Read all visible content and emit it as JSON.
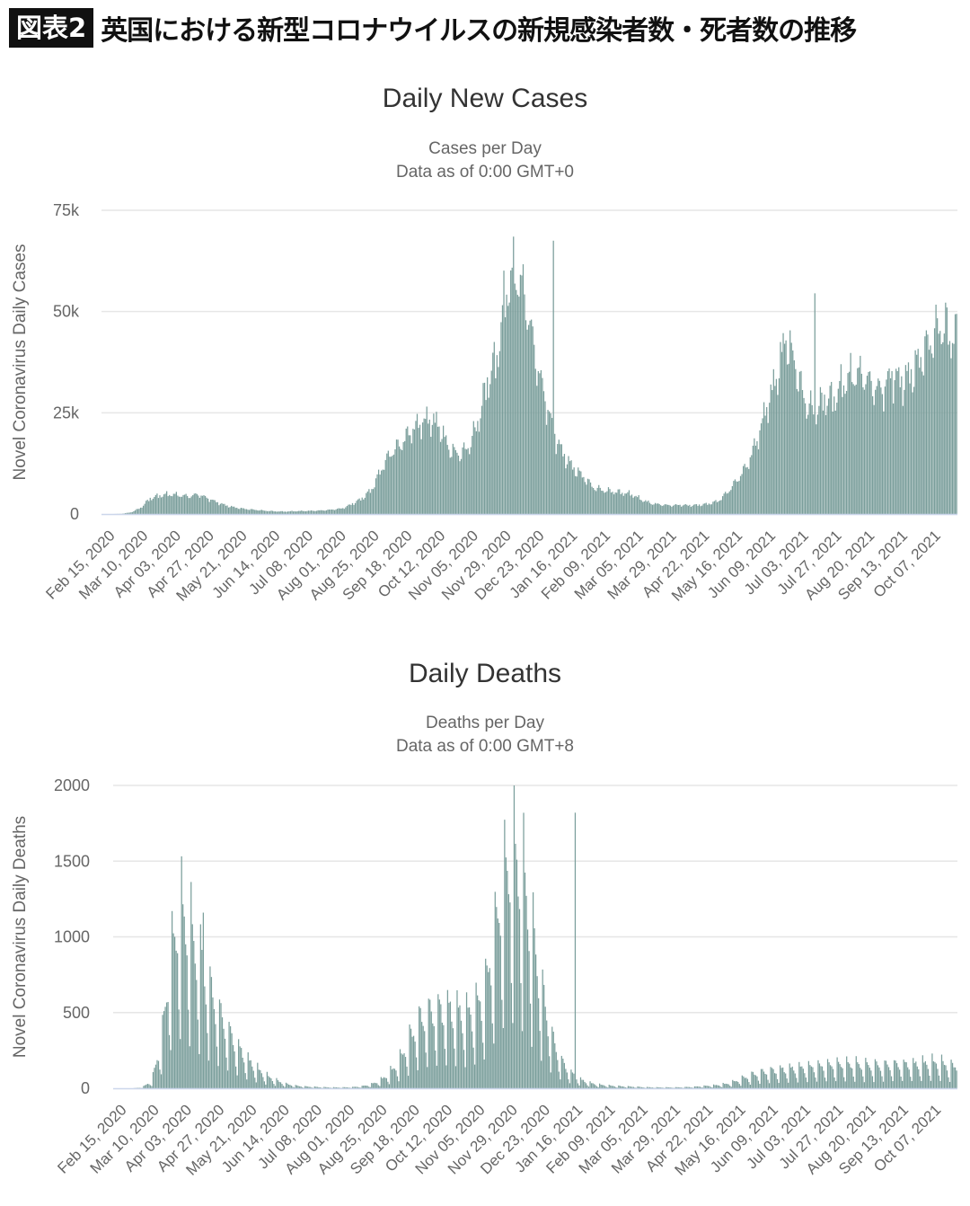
{
  "header": {
    "badge": "図表2",
    "title": "英国における新型コロナウイルスの新規感染者数・死者数の推移"
  },
  "colors": {
    "bar": "#7a9e9b",
    "bar_stroke": "#6a8e8b",
    "grid": "#e6e6e6",
    "axis": "#ccd6eb",
    "text": "#666666"
  },
  "chart_data": [
    {
      "type": "bar",
      "title": "Daily New Cases",
      "subtitle": "Cases per Day",
      "subtitle2": "Data as of 0:00 GMT+0",
      "xlabel": "",
      "ylabel": "Novel Coronavirus Daily Cases",
      "ylim": [
        0,
        75000
      ],
      "yticks": [
        0,
        25000,
        50000,
        75000
      ],
      "ytick_labels": [
        "0",
        "25k",
        "50k",
        "75k"
      ],
      "grid": true,
      "x_start": "Feb 15, 2020",
      "x_end": "Oct 28, 2021",
      "xtick_labels": [
        "Feb 15, 2020",
        "Mar 10, 2020",
        "Apr 03, 2020",
        "Apr 27, 2020",
        "May 21, 2020",
        "Jun 14, 2020",
        "Jul 08, 2020",
        "Aug 01, 2020",
        "Aug 25, 2020",
        "Sep 18, 2020",
        "Oct 12, 2020",
        "Nov 05, 2020",
        "Nov 29, 2020",
        "Dec 23, 2020",
        "Jan 16, 2021",
        "Feb 09, 2021",
        "Mar 05, 2021",
        "Mar 29, 2021",
        "Apr 22, 2021",
        "May 16, 2021",
        "Jun 09, 2021",
        "Jul 03, 2021",
        "Jul 27, 2021",
        "Aug 20, 2021",
        "Sep 13, 2021",
        "Oct 07, 2021"
      ],
      "weekly_values": [
        0,
        0,
        50,
        400,
        1500,
        3800,
        4500,
        4800,
        4600,
        4300,
        4800,
        3800,
        2800,
        2000,
        1500,
        1200,
        1000,
        800,
        650,
        600,
        700,
        750,
        800,
        900,
        1100,
        1400,
        2500,
        3800,
        6000,
        11000,
        15000,
        17000,
        20000,
        22000,
        23000,
        21500,
        16000,
        14500,
        16000,
        22000,
        32000,
        38000,
        55000,
        59000,
        52000,
        38000,
        28000,
        19000,
        14000,
        11000,
        9000,
        6500,
        5800,
        5500,
        5200,
        4800,
        3500,
        2600,
        2300,
        2100,
        2200,
        2100,
        2200,
        2500,
        3200,
        5500,
        8500,
        12000,
        18000,
        26000,
        33000,
        43000,
        36000,
        27000,
        25000,
        28000,
        28000,
        32000,
        34000,
        34000,
        31000,
        30000,
        34000,
        32000,
        34000,
        38000,
        42000,
        46000,
        43000
      ],
      "weekday_factors": [
        1.0,
        0.88,
        0.95,
        1.06,
        1.1,
        1.12,
        0.98
      ],
      "peaks": [
        {
          "date": "Jan 08, 2021",
          "value": 67500
        },
        {
          "date": "Jul 17, 2021",
          "value": 54500
        },
        {
          "date": "Oct 21, 2021",
          "value": 51000
        }
      ]
    },
    {
      "type": "bar",
      "title": "Daily Deaths",
      "subtitle": "Deaths per Day",
      "subtitle2": "Data as of 0:00 GMT+8",
      "xlabel": "",
      "ylabel": "Novel Coronavirus Daily Deaths",
      "ylim": [
        0,
        2000
      ],
      "yticks": [
        0,
        500,
        1000,
        1500,
        2000
      ],
      "ytick_labels": [
        "0",
        "500",
        "1000",
        "1500",
        "2000"
      ],
      "grid": true,
      "x_start": "Feb 15, 2020",
      "x_end": "Oct 28, 2021",
      "xtick_labels": [
        "Feb 15, 2020",
        "Mar 10, 2020",
        "Apr 03, 2020",
        "Apr 27, 2020",
        "May 21, 2020",
        "Jun 14, 2020",
        "Jul 08, 2020",
        "Aug 01, 2020",
        "Aug 25, 2020",
        "Sep 18, 2020",
        "Oct 12, 2020",
        "Nov 05, 2020",
        "Nov 29, 2020",
        "Dec 23, 2020",
        "Jan 16, 2021",
        "Feb 09, 2021",
        "Mar 05, 2021",
        "Mar 29, 2021",
        "Apr 22, 2021",
        "May 16, 2021",
        "Jun 09, 2021",
        "Jul 03, 2021",
        "Jul 27, 2021",
        "Aug 20, 2021",
        "Sep 13, 2021",
        "Oct 07, 2021"
      ],
      "weekly_values": [
        0,
        0,
        0,
        5,
        40,
        250,
        700,
        950,
        850,
        700,
        550,
        420,
        320,
        230,
        160,
        110,
        70,
        45,
        25,
        15,
        10,
        8,
        6,
        5,
        5,
        6,
        10,
        20,
        40,
        80,
        140,
        250,
        350,
        400,
        420,
        430,
        420,
        400,
        440,
        520,
        800,
        1100,
        1250,
        1150,
        850,
        550,
        300,
        160,
        90,
        50,
        30,
        20,
        15,
        12,
        10,
        8,
        6,
        5,
        5,
        5,
        6,
        8,
        12,
        15,
        20,
        30,
        50,
        70,
        85,
        95,
        100,
        105,
        110,
        115,
        120,
        125,
        130,
        130,
        130,
        125,
        125,
        125,
        130,
        130,
        130,
        135,
        140,
        140,
        120
      ],
      "weekday_factors": [
        0.35,
        1.55,
        1.35,
        1.25,
        1.1,
        0.95,
        0.6
      ],
      "peaks": [
        {
          "date": "Apr 21, 2020",
          "value": 1160
        },
        {
          "date": "Jan 20, 2021",
          "value": 1820
        }
      ]
    }
  ]
}
